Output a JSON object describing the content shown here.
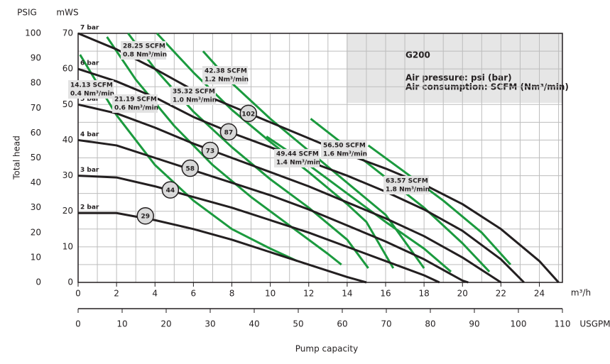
{
  "chart_data": {
    "type": "line",
    "title": "G200",
    "subtitle": [
      "Air pressure: psi (bar)",
      "Air consumption: SCFM (Nm³/min)"
    ],
    "ylabel": "mWS",
    "y2label": "PSIG",
    "axis_title": "Total head",
    "xlabel": "m³/h",
    "x2label": "USGPM",
    "x_axis_title": "Pump capacity",
    "xlim": [
      0,
      25.2
    ],
    "xticks": [
      0,
      2,
      4,
      6,
      8,
      10,
      12,
      14,
      16,
      18,
      20,
      22,
      24
    ],
    "x2lim": [
      0,
      110
    ],
    "x2ticks": [
      0,
      10,
      20,
      30,
      40,
      50,
      60,
      70,
      80,
      90,
      100,
      110
    ],
    "ylim": [
      0,
      70
    ],
    "yticks": [
      0,
      10,
      20,
      30,
      40,
      50,
      60,
      70
    ],
    "y2lim": [
      0,
      100
    ],
    "y2ticks": [
      0,
      10,
      20,
      30,
      40,
      50,
      60,
      70,
      80,
      90,
      100
    ],
    "xgrid": [
      1,
      2,
      3,
      4,
      5,
      6,
      7,
      8,
      9,
      10,
      11,
      12,
      13,
      14,
      15,
      16,
      17,
      18,
      19,
      20,
      21,
      22,
      23,
      24,
      25
    ],
    "ygrid": [
      5,
      10,
      15,
      20,
      25,
      30,
      35,
      40,
      45,
      50,
      55,
      60,
      65
    ],
    "grid": true,
    "series": [
      {
        "name": "7 bar",
        "color": "#231f20",
        "x": [
          0,
          2,
          4,
          6,
          8,
          10,
          12,
          14,
          16,
          18,
          20,
          22,
          24,
          25
        ],
        "values": [
          70,
          65.5,
          60,
          54,
          49.5,
          45,
          40.5,
          36,
          32,
          27.5,
          22,
          15,
          6,
          0
        ]
      },
      {
        "name": "6 bar",
        "color": "#231f20",
        "x": [
          0,
          2,
          4,
          6,
          8,
          10,
          12,
          14,
          16,
          18,
          20,
          22,
          23.2
        ],
        "values": [
          60,
          56.5,
          52,
          46.5,
          42,
          38,
          34,
          30,
          25.5,
          20.5,
          14.5,
          6.5,
          0
        ]
      },
      {
        "name": "5 bar",
        "color": "#231f20",
        "x": [
          0,
          2,
          4,
          6,
          8,
          10,
          12,
          14,
          16,
          18,
          20,
          22
        ],
        "values": [
          50,
          47.5,
          43.5,
          39,
          35,
          31,
          27,
          22.5,
          18,
          13,
          7,
          0
        ]
      },
      {
        "name": "4 bar",
        "color": "#231f20",
        "x": [
          0,
          2,
          4,
          6,
          8,
          10,
          12,
          14,
          16,
          18,
          20,
          20.3
        ],
        "values": [
          40,
          38.5,
          35,
          31.5,
          28,
          24.5,
          20.5,
          16,
          11.5,
          6.5,
          0.5,
          0
        ]
      },
      {
        "name": "3 bar",
        "color": "#231f20",
        "x": [
          0,
          2,
          4,
          6,
          8,
          10,
          12,
          14,
          16,
          18,
          18.8
        ],
        "values": [
          30,
          29.5,
          27,
          24,
          21,
          17.5,
          14,
          10,
          6,
          2,
          0
        ]
      },
      {
        "name": "2 bar",
        "color": "#231f20",
        "x": [
          0,
          2,
          4,
          6,
          8,
          10,
          12,
          14,
          15
        ],
        "values": [
          19.5,
          19.5,
          17.5,
          15,
          12,
          8.5,
          5,
          1.5,
          0
        ]
      }
    ],
    "air_series": [
      {
        "labels": [
          "14.13 SCFM",
          "0.4 Nm³/min"
        ],
        "color": "#1b9a3e",
        "x": [
          0.1,
          2,
          4,
          6,
          8,
          10,
          11.4
        ],
        "values": [
          64,
          47,
          33,
          23,
          15,
          9.5,
          6
        ]
      },
      {
        "labels": [
          "21.19 SCFM",
          "0.6 Nm³/min"
        ],
        "color": "#1b9a3e",
        "x": [
          1.5,
          3,
          5,
          7,
          9,
          11,
          13,
          13.7
        ],
        "values": [
          69,
          57,
          44,
          33,
          24,
          16,
          8,
          5
        ]
      },
      {
        "labels": [
          "28.25 SCFM",
          "0.8 Nm³/min"
        ],
        "color": "#1b9a3e",
        "x": [
          2.6,
          4,
          6,
          8,
          10,
          12,
          14,
          15.1
        ],
        "values": [
          70,
          60,
          48,
          38,
          29,
          21,
          12,
          4
        ]
      },
      {
        "labels": [
          "35.32 SCFM",
          "1.0 Nm³/min"
        ],
        "color": "#1b9a3e",
        "x": [
          4.1,
          6,
          8,
          10,
          12,
          14,
          15,
          16.4
        ],
        "values": [
          70,
          59,
          48.5,
          39.5,
          31,
          22,
          17,
          4
        ]
      },
      {
        "labels": [
          "42.38 SCFM",
          "1.2 Nm³/min"
        ],
        "color": "#1b9a3e",
        "x": [
          6.5,
          8,
          10,
          12,
          14,
          16,
          18
        ],
        "values": [
          65,
          56,
          46,
          37,
          28,
          19,
          4
        ]
      },
      {
        "labels": [
          "49.44 SCFM",
          "1.4 Nm³/min"
        ],
        "color": "#1b9a3e",
        "x": [
          9.8,
          12,
          14,
          16,
          18,
          19.4
        ],
        "values": [
          41,
          33,
          25,
          17,
          9.5,
          3
        ]
      },
      {
        "labels": [
          "56.50 SCFM",
          "1.6 Nm³/min"
        ],
        "color": "#1b9a3e",
        "x": [
          12.1,
          14,
          16,
          18,
          20,
          21.4
        ],
        "values": [
          46,
          38,
          29.5,
          21,
          11,
          3
        ]
      },
      {
        "labels": [
          "63.57 SCFM",
          "1.8 Nm³/min"
        ],
        "color": "#1b9a3e",
        "x": [
          15.1,
          17,
          19,
          21,
          22.5
        ],
        "values": [
          38.5,
          31,
          23,
          14,
          5
        ]
      }
    ],
    "markers": {
      "x": [
        3.5,
        4.8,
        5.83,
        6.87,
        7.83,
        8.86
      ],
      "y": [
        18.7,
        26,
        32.1,
        37.1,
        42.3,
        47.5
      ],
      "values": [
        29,
        44,
        58,
        73,
        87,
        102
      ],
      "color": "#d9d9d9"
    },
    "box_color": "#e6e6e6"
  }
}
